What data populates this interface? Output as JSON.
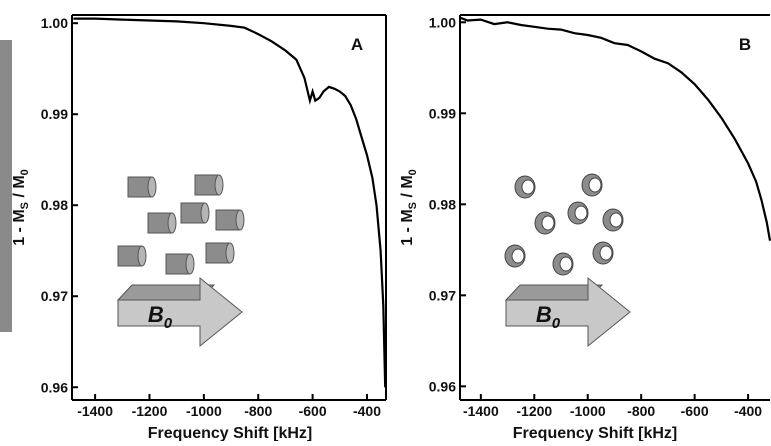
{
  "chart_data": [
    {
      "type": "line",
      "panel_label": "A",
      "x_label": "Frequency Shift [kHz]",
      "y_label": [
        "1 - M",
        "S",
        " / M",
        "0"
      ],
      "field_label": [
        "B",
        "0"
      ],
      "x": [
        -1480,
        -1400,
        -1300,
        -1200,
        -1100,
        -1000,
        -900,
        -850,
        -800,
        -750,
        -700,
        -660,
        -630,
        -610,
        -600,
        -590,
        -575,
        -560,
        -540,
        -520,
        -500,
        -480,
        -460,
        -440,
        -420,
        -400,
        -380,
        -365,
        -350,
        -340,
        -333
      ],
      "series": [
        {
          "color": "#000000",
          "values": [
            1.0005,
            1.0005,
            1.0004,
            1.0003,
            1.0002,
            1.0,
            0.9997,
            0.9995,
            0.9988,
            0.998,
            0.997,
            0.996,
            0.994,
            0.9915,
            0.9925,
            0.9915,
            0.9918,
            0.9925,
            0.993,
            0.9928,
            0.9925,
            0.992,
            0.991,
            0.9895,
            0.9875,
            0.9855,
            0.983,
            0.98,
            0.975,
            0.969,
            0.96
          ]
        }
      ],
      "xlim": [
        -1485,
        -330
      ],
      "ylim": [
        0.9586,
        1.0009
      ],
      "xticks": [
        -1400,
        -1200,
        -1000,
        -800,
        -600,
        -400
      ],
      "yticks": [
        0.96,
        0.97,
        0.98,
        0.99,
        {
          "value": 1,
          "label": "1.00"
        }
      ]
    },
    {
      "type": "line",
      "panel_label": "B",
      "x_label": "Frequency Shift [kHz]",
      "y_label": [
        "1 - M",
        "S",
        " / M",
        "0"
      ],
      "field_label": [
        "B",
        "0"
      ],
      "x": [
        -1478,
        -1450,
        -1400,
        -1350,
        -1300,
        -1250,
        -1200,
        -1150,
        -1100,
        -1050,
        -1000,
        -950,
        -900,
        -850,
        -800,
        -750,
        -700,
        -650,
        -600,
        -550,
        -500,
        -450,
        -400,
        -370,
        -350,
        -330,
        -318
      ],
      "series": [
        {
          "color": "#000000",
          "values": [
            1.0005,
            1.0002,
            1.0003,
            0.9998,
            1.0,
            0.9997,
            0.9995,
            0.9993,
            0.9992,
            0.9988,
            0.9986,
            0.9983,
            0.9977,
            0.9975,
            0.9968,
            0.996,
            0.9955,
            0.9945,
            0.9932,
            0.9915,
            0.9895,
            0.9872,
            0.9845,
            0.9825,
            0.9805,
            0.978,
            0.976
          ]
        }
      ],
      "xlim": [
        -1478,
        -318
      ],
      "ylim": [
        0.9585,
        1.0008
      ],
      "xticks": [
        -1400,
        -1200,
        -1000,
        -800,
        -600,
        -400
      ],
      "yticks": [
        0.96,
        0.97,
        0.98,
        0.99,
        {
          "value": 1,
          "label": "1.00"
        }
      ]
    }
  ]
}
